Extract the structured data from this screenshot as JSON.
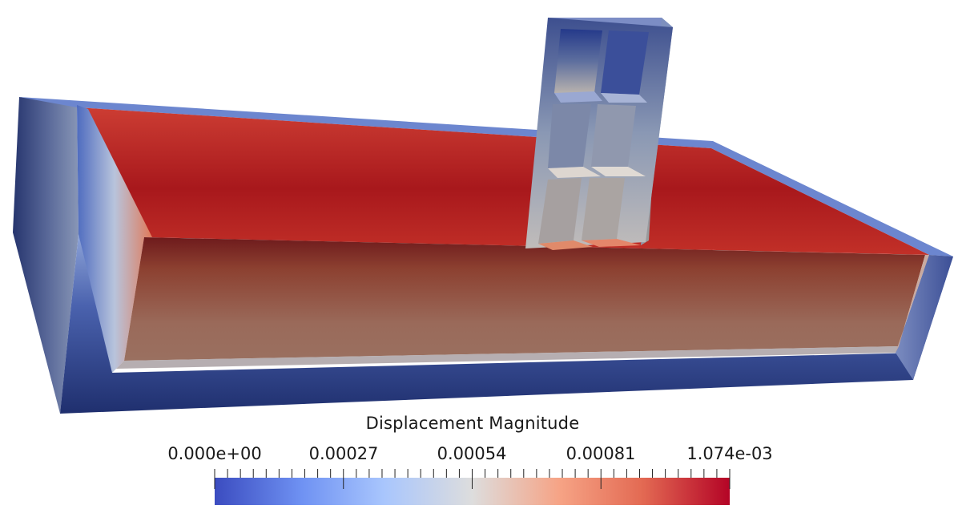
{
  "colorbar": {
    "title": "Displacement Magnitude",
    "range": [
      0,
      0.001074
    ],
    "tick_labels": [
      "0.000e+00",
      "0.00027",
      "0.00054",
      "0.00081",
      "1.074e-03"
    ],
    "colormap": [
      "#3b4cc0",
      "#6f92f3",
      "#a9c6fd",
      "#dddddd",
      "#f6a385",
      "#e36a53",
      "#b40426"
    ]
  },
  "colors": {
    "background": "#ffffff",
    "low": "#3b4cc0",
    "high": "#b40426"
  }
}
